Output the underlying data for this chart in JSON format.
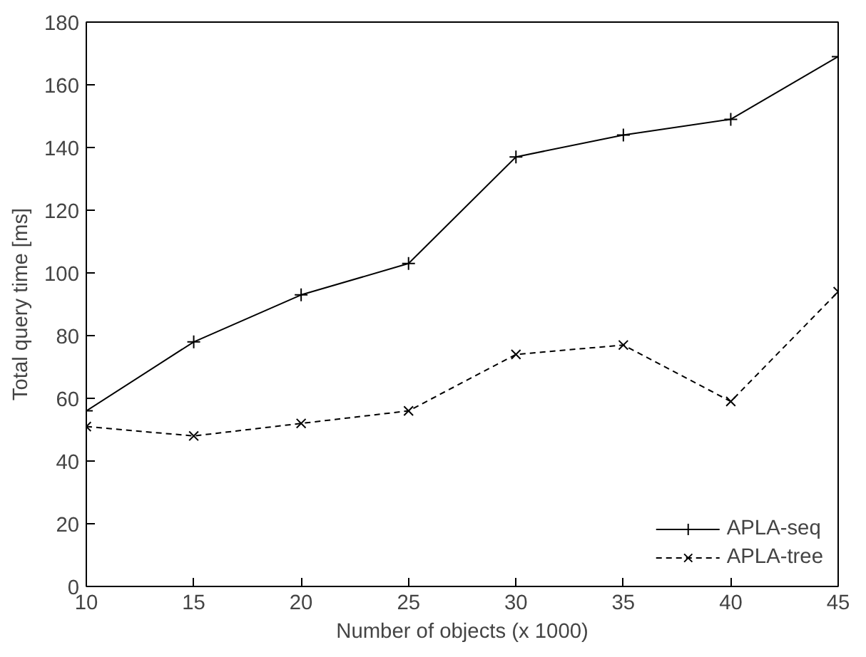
{
  "chart_data": {
    "type": "line",
    "xlabel": "Number of objects (x 1000)",
    "ylabel": "Total query time [ms]",
    "x": [
      10,
      15,
      20,
      25,
      30,
      35,
      40,
      45
    ],
    "series": [
      {
        "name": "APLA-seq",
        "color": "#000000",
        "marker": "cross",
        "line_style": "solid",
        "values": [
          56,
          78,
          93,
          103,
          137,
          144,
          149,
          169
        ]
      },
      {
        "name": "APLA-tree",
        "color": "#000000",
        "marker": "x",
        "line_style": "dashed",
        "values": [
          51,
          48,
          52,
          56,
          74,
          77,
          59,
          94
        ]
      }
    ],
    "xlim": [
      10,
      45
    ],
    "xticks": [
      10,
      15,
      20,
      25,
      30,
      35,
      40,
      45
    ],
    "ylim": [
      0,
      180
    ],
    "yticks": [
      0,
      20,
      40,
      60,
      80,
      100,
      120,
      140,
      160,
      180
    ],
    "grid": false,
    "legend": "bottom right"
  }
}
